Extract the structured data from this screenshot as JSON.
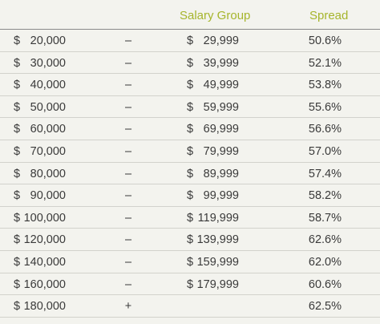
{
  "header": {
    "salary_group": "Salary Group",
    "spread": "Spread"
  },
  "rows": [
    {
      "low_cur": "$",
      "low": "20,000",
      "sep": "–",
      "high_cur": "$",
      "high": "29,999",
      "spread": "50.6%"
    },
    {
      "low_cur": "$",
      "low": "30,000",
      "sep": "–",
      "high_cur": "$",
      "high": "39,999",
      "spread": "52.1%"
    },
    {
      "low_cur": "$",
      "low": "40,000",
      "sep": "–",
      "high_cur": "$",
      "high": "49,999",
      "spread": "53.8%"
    },
    {
      "low_cur": "$",
      "low": "50,000",
      "sep": "–",
      "high_cur": "$",
      "high": "59,999",
      "spread": "55.6%"
    },
    {
      "low_cur": "$",
      "low": "60,000",
      "sep": "–",
      "high_cur": "$",
      "high": "69,999",
      "spread": "56.6%"
    },
    {
      "low_cur": "$",
      "low": "70,000",
      "sep": "–",
      "high_cur": "$",
      "high": "79,999",
      "spread": "57.0%"
    },
    {
      "low_cur": "$",
      "low": "80,000",
      "sep": "–",
      "high_cur": "$",
      "high": "89,999",
      "spread": "57.4%"
    },
    {
      "low_cur": "$",
      "low": "90,000",
      "sep": "–",
      "high_cur": "$",
      "high": "99,999",
      "spread": "58.2%"
    },
    {
      "low_cur": "$",
      "low": "100,000",
      "sep": "–",
      "high_cur": "$",
      "high": "119,999",
      "spread": "58.7%"
    },
    {
      "low_cur": "$",
      "low": "120,000",
      "sep": "–",
      "high_cur": "$",
      "high": "139,999",
      "spread": "62.6%"
    },
    {
      "low_cur": "$",
      "low": "140,000",
      "sep": "–",
      "high_cur": "$",
      "high": "159,999",
      "spread": "62.0%"
    },
    {
      "low_cur": "$",
      "low": "160,000",
      "sep": "–",
      "high_cur": "$",
      "high": "179,999",
      "spread": "60.6%"
    },
    {
      "low_cur": "$",
      "low": "180,000",
      "sep": "+",
      "high_cur": "",
      "high": "",
      "spread": "62.5%"
    }
  ]
}
